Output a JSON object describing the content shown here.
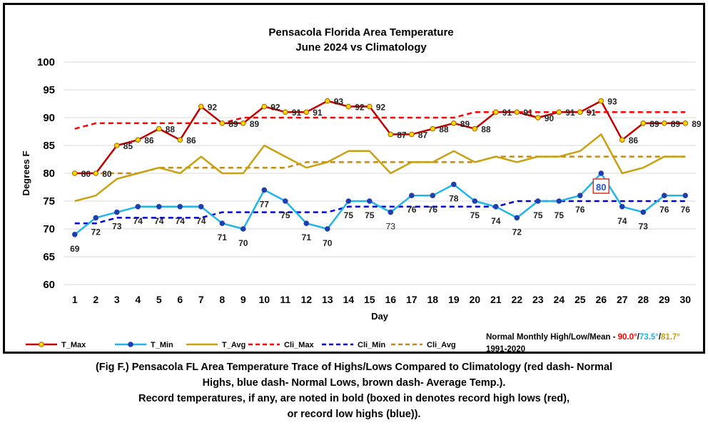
{
  "chart_data": {
    "type": "line",
    "title": "Pensacola Florida Area Temperature",
    "subtitle": "June 2024 vs Climatology",
    "xlabel": "Day",
    "ylabel": "Degrees F",
    "ylim": [
      60,
      100
    ],
    "yticks": [
      "60",
      "65",
      "70",
      "75",
      "80",
      "85",
      "90",
      "95",
      "100"
    ],
    "x": [
      1,
      2,
      3,
      4,
      5,
      6,
      7,
      8,
      9,
      10,
      11,
      12,
      13,
      14,
      15,
      16,
      17,
      18,
      19,
      20,
      21,
      22,
      23,
      24,
      25,
      26,
      27,
      28,
      29,
      30
    ],
    "grid": true,
    "legend_position": "bottom",
    "series": [
      {
        "name": "T_Max",
        "color": "#c00000",
        "marker_fill": "#ffd700",
        "style": "solid-marker",
        "values": [
          80,
          80,
          85,
          86,
          88,
          86,
          92,
          89,
          89,
          92,
          91,
          91,
          93,
          92,
          92,
          87,
          87,
          88,
          89,
          88,
          91,
          91,
          90,
          91,
          91,
          93,
          86,
          89,
          89,
          89
        ]
      },
      {
        "name": "T_Min",
        "color": "#1fb5ea",
        "marker_fill": "#1f3fb0",
        "style": "solid-marker",
        "values": [
          69,
          72,
          73,
          74,
          74,
          74,
          74,
          71,
          70,
          77,
          75,
          71,
          70,
          75,
          75,
          73,
          76,
          76,
          78,
          75,
          74,
          72,
          75,
          75,
          76,
          80,
          74,
          73,
          76,
          76
        ]
      },
      {
        "name": "T_Avg",
        "color": "#c8a010",
        "style": "solid",
        "values": [
          75,
          76,
          79,
          80,
          81,
          80,
          83,
          80,
          80,
          85,
          83,
          81,
          82,
          84,
          84,
          80,
          82,
          82,
          84,
          82,
          83,
          82,
          83,
          83,
          84,
          87,
          80,
          81,
          83,
          83
        ]
      },
      {
        "name": "Cli_Max",
        "color": "#ff0000",
        "style": "dash",
        "values": [
          88,
          89,
          89,
          89,
          89,
          89,
          89,
          89,
          90,
          90,
          90,
          90,
          90,
          90,
          90,
          90,
          90,
          90,
          90,
          91,
          91,
          91,
          91,
          91,
          91,
          91,
          91,
          91,
          91,
          91
        ]
      },
      {
        "name": "Cli_Min",
        "color": "#0000dd",
        "style": "dash",
        "values": [
          71,
          71,
          72,
          72,
          72,
          72,
          72,
          73,
          73,
          73,
          73,
          73,
          73,
          74,
          74,
          74,
          74,
          74,
          74,
          74,
          74,
          75,
          75,
          75,
          75,
          75,
          75,
          75,
          75,
          75
        ]
      },
      {
        "name": "Cli_Avg",
        "color": "#c08a20",
        "style": "dash",
        "values": [
          80,
          80,
          80,
          80,
          81,
          81,
          81,
          81,
          81,
          81,
          81,
          82,
          82,
          82,
          82,
          82,
          82,
          82,
          82,
          82,
          83,
          83,
          83,
          83,
          83,
          83,
          83,
          83,
          83,
          83
        ]
      }
    ],
    "data_labels": {
      "T_Max": [
        "80",
        "80",
        "85",
        "86",
        "88",
        "86",
        "92",
        "89",
        "89",
        "92",
        "91",
        "91",
        "93",
        "92",
        "92",
        "87",
        "87",
        "88",
        "89",
        "88",
        "91",
        "91",
        "90",
        "91",
        "91",
        "93",
        "86",
        "89",
        "89",
        "89"
      ],
      "T_Min": [
        "69",
        "72",
        "73",
        "74",
        "74",
        "74",
        "74",
        "71",
        "70",
        "77",
        "75",
        "71",
        "70",
        "75",
        "75",
        "73",
        "76",
        "76",
        "78",
        "75",
        "74",
        "72",
        "75",
        "75",
        "76",
        "80",
        "74",
        "73",
        "76",
        "76"
      ]
    },
    "record_highlight": {
      "series": "T_Min",
      "day": 26,
      "value": "80",
      "box_color": "#e03020",
      "text_color": "#2255dd"
    },
    "normals": {
      "label": "Normal Monthly High/Low/Mean - ",
      "high": "90.0°",
      "high_color": "#ff0000",
      "low": "73.5°",
      "low_color": "#1fb5ea",
      "mean": "81.7°",
      "mean_color": "#c8a010",
      "sep": "/",
      "period": "1991-2020"
    }
  },
  "caption": {
    "line1": "(Fig F.) Pensacola FL Area Temperature Trace of Highs/Lows Compared to Climatology (red dash- Normal",
    "line2": "Highs, blue dash- Normal Lows, brown dash- Average Temp.).",
    "line3": "Record temperatures, if any, are noted in bold (boxed in denotes record high lows (red),",
    "line4": "or record low highs (blue))."
  }
}
